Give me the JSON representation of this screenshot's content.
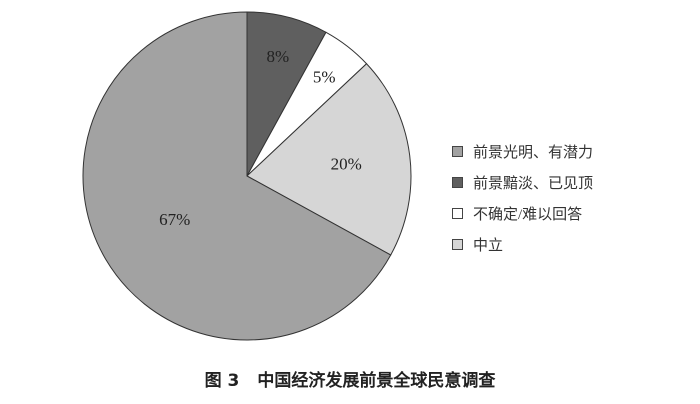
{
  "chart_data": {
    "type": "pie",
    "title": "中国经济发展前景全球民意调查",
    "figure_label": "图 3",
    "start": "top",
    "direction": "clockwise",
    "slices": [
      {
        "name": "前景黯淡、已见顶",
        "value": 8,
        "label": "8%",
        "color": "#5f5f5f"
      },
      {
        "name": "不确定/难以回答",
        "value": 5,
        "label": "5%",
        "color": "#ffffff"
      },
      {
        "name": "中立",
        "value": 20,
        "label": "20%",
        "color": "#d6d6d6"
      },
      {
        "name": "前景光明、有潜力",
        "value": 67,
        "label": "67%",
        "color": "#a2a2a2"
      }
    ],
    "legend": [
      {
        "name": "前景光明、有潜力",
        "color": "#a2a2a2"
      },
      {
        "name": "前景黯淡、已见顶",
        "color": "#5f5f5f"
      },
      {
        "name": "不确定/难以回答",
        "color": "#ffffff"
      },
      {
        "name": "中立",
        "color": "#d6d6d6"
      }
    ],
    "legend_position": "right"
  }
}
